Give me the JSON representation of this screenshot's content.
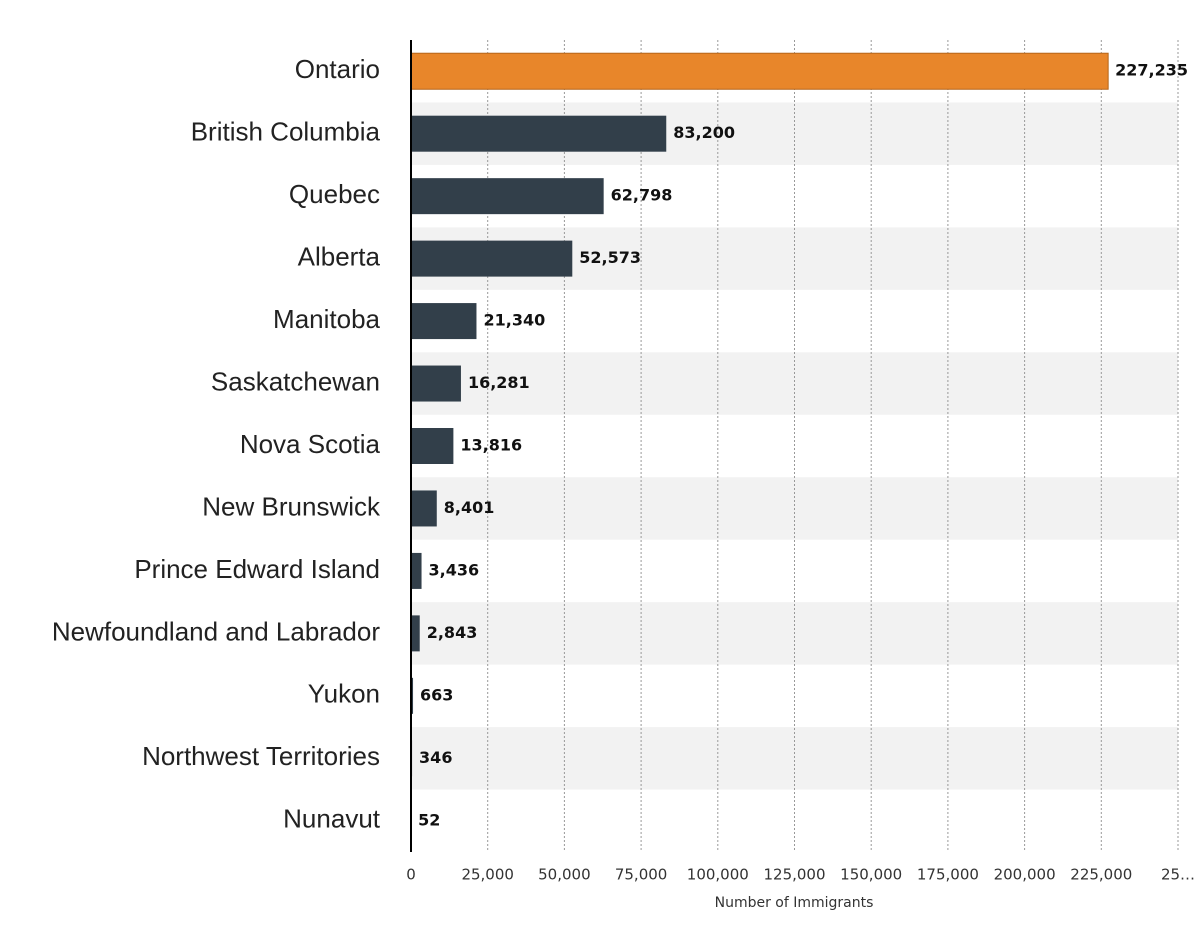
{
  "chart_data": {
    "type": "hbar",
    "categories": [
      "Ontario",
      "British Columbia",
      "Quebec",
      "Alberta",
      "Manitoba",
      "Saskatchewan",
      "Nova Scotia",
      "New Brunswick",
      "Prince Edward Island",
      "Newfoundland and Labrador",
      "Yukon",
      "Northwest Territories",
      "Nunavut"
    ],
    "values": [
      227235,
      83200,
      62798,
      52573,
      21340,
      16281,
      13816,
      8401,
      3436,
      2843,
      663,
      346,
      52
    ],
    "value_labels": [
      "227,235",
      "83,200",
      "62,798",
      "52,573",
      "21,340",
      "16,281",
      "13,816",
      "8,401",
      "3,436",
      "2,843",
      "663",
      "346",
      "52"
    ],
    "colors": [
      "#e8862a",
      "#323f4a",
      "#323f4a",
      "#323f4a",
      "#323f4a",
      "#323f4a",
      "#323f4a",
      "#323f4a",
      "#323f4a",
      "#323f4a",
      "#323f4a",
      "#323f4a",
      "#323f4a"
    ],
    "xlabel": "Number of Immigrants",
    "xlim": [
      0,
      250000
    ],
    "xticks": [
      0,
      {
        "value": 25000,
        "label": "25,000"
      },
      {
        "value": 50000,
        "label": "50,000"
      },
      {
        "value": 75000,
        "label": "75,000"
      },
      {
        "value": 100000,
        "label": "100,000"
      },
      {
        "value": 125000,
        "label": "125,000"
      },
      {
        "value": 150000,
        "label": "150,000"
      },
      {
        "value": 175000,
        "label": "175,000"
      },
      {
        "value": 200000,
        "label": "200,000"
      },
      {
        "value": 225000,
        "label": "225,000"
      },
      {
        "value": 250000,
        "label": "25…"
      }
    ],
    "grid": true
  }
}
